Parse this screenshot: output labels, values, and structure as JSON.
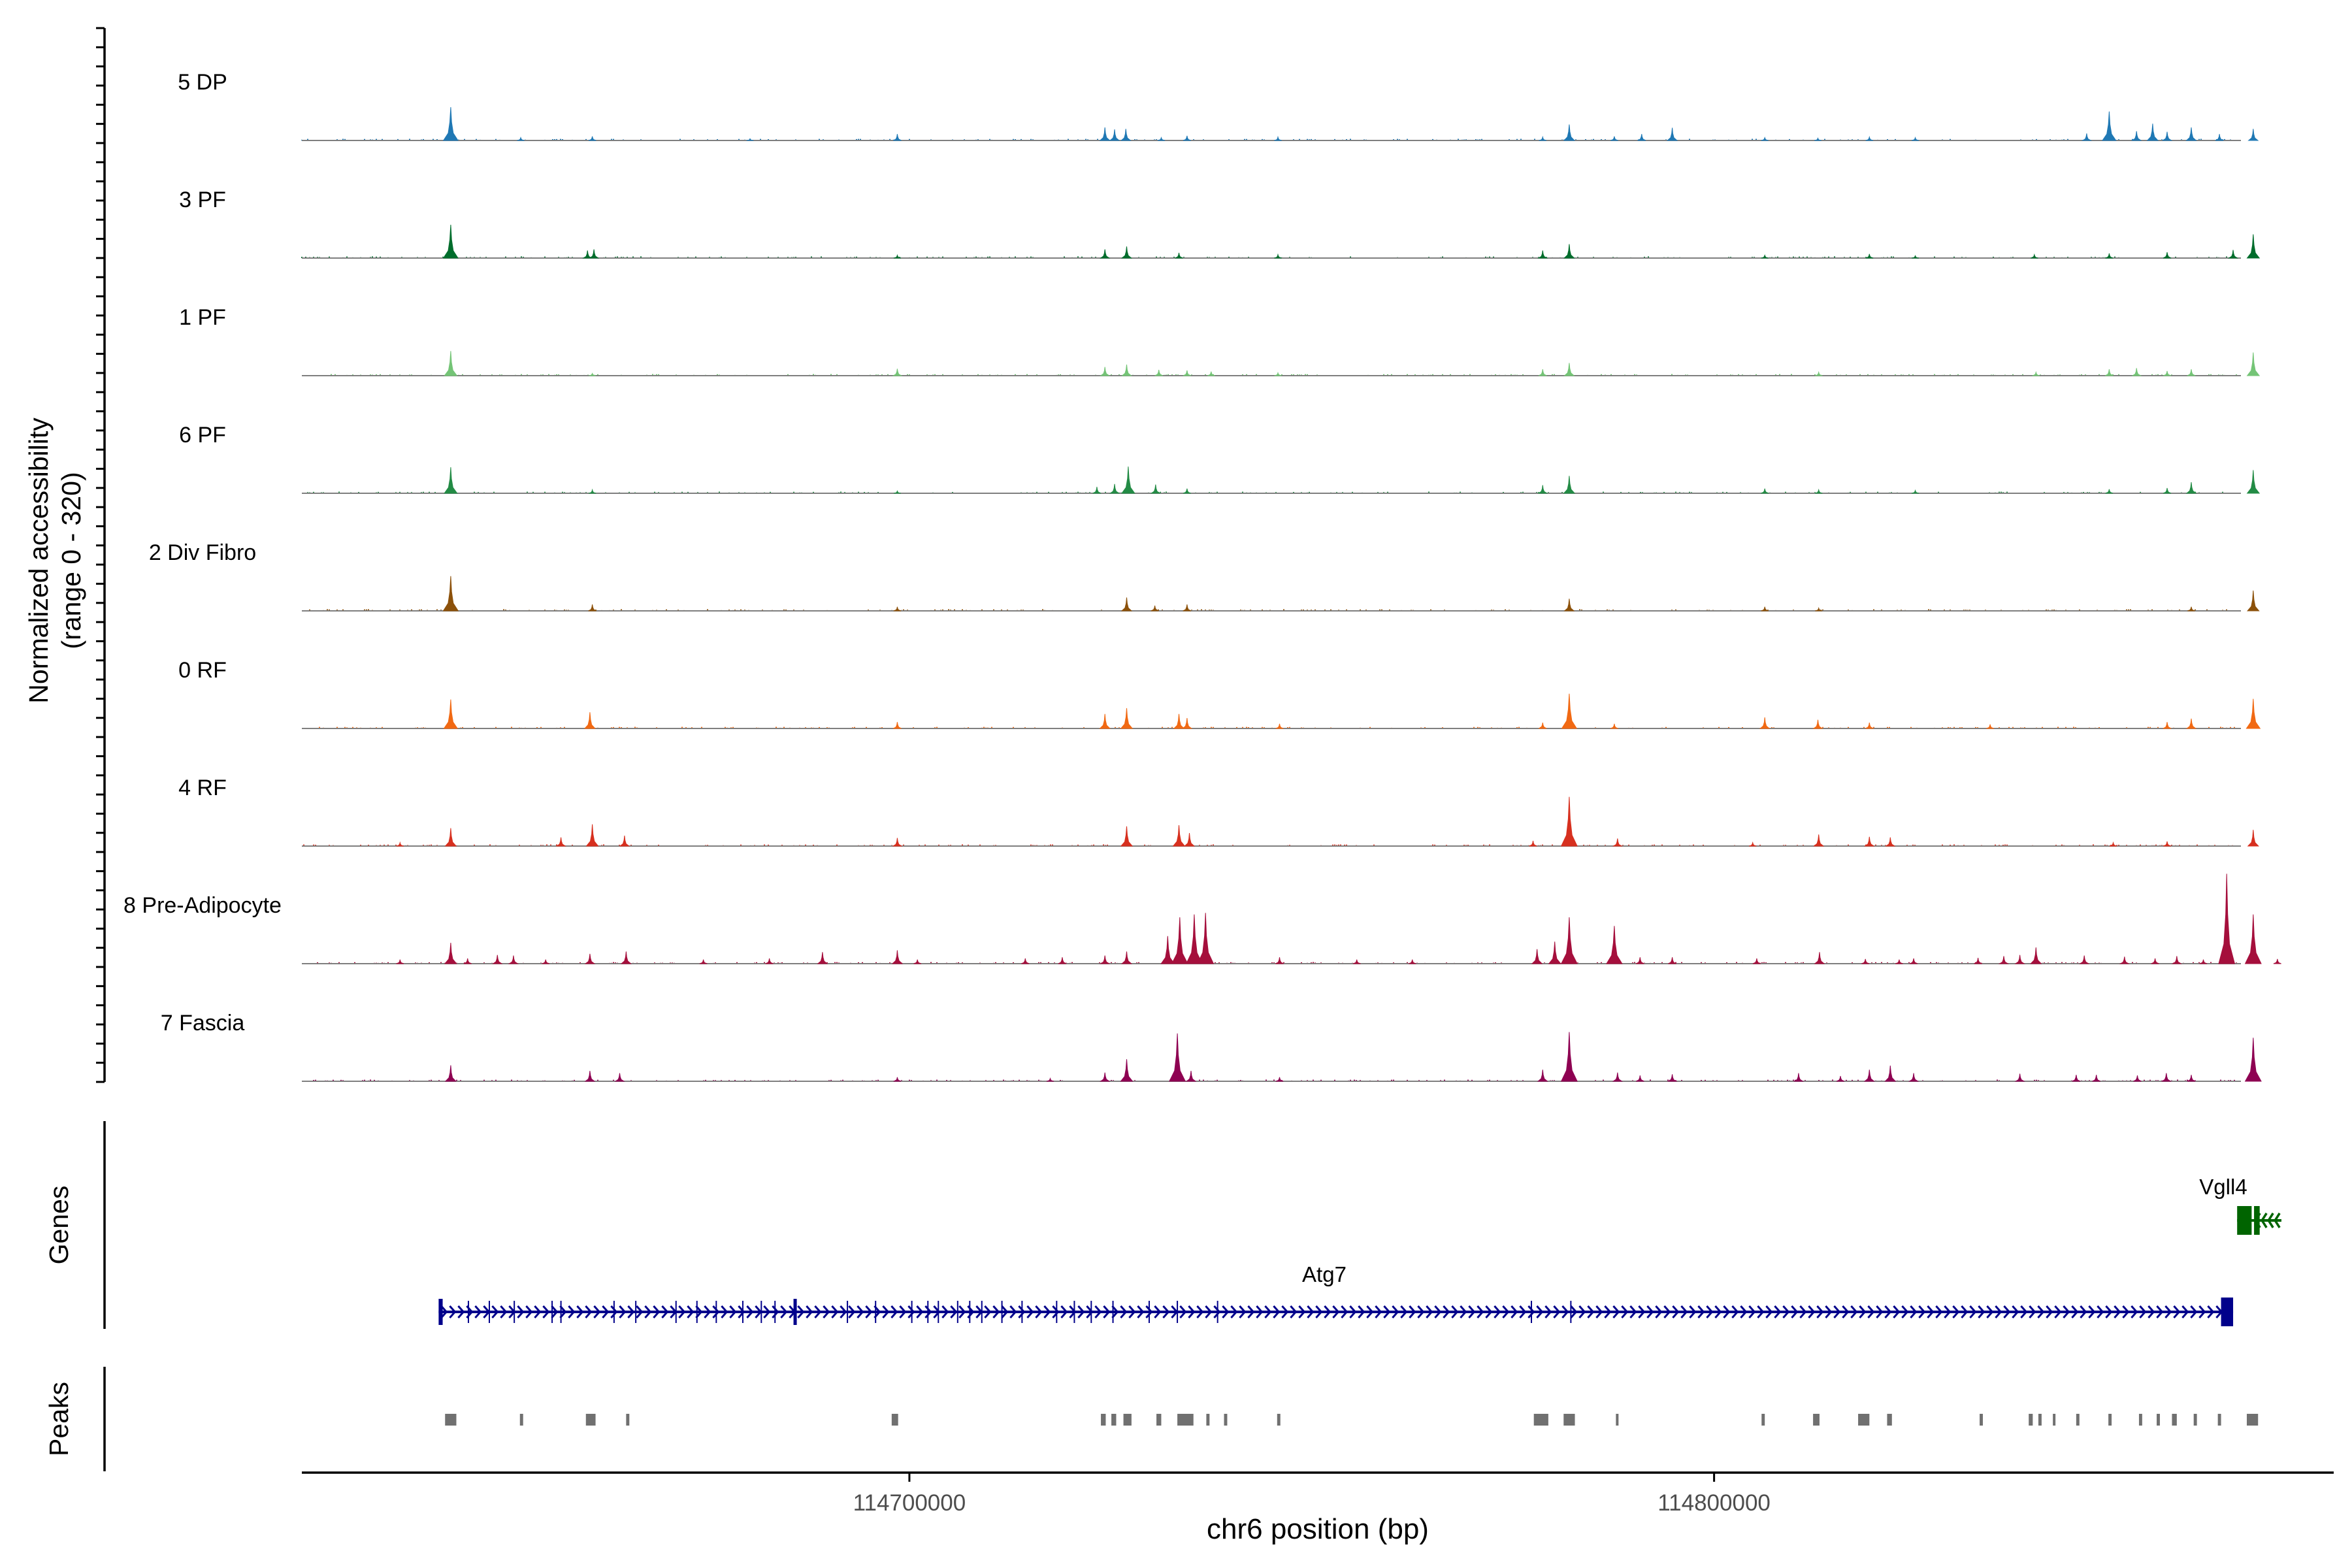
{
  "chart_data": {
    "type": "area",
    "title": "",
    "chromosome": "chr6",
    "xlabel": "chr6 position (bp)",
    "xlim": [
      114624500,
      114877000
    ],
    "x_ticks": [
      114700000,
      114800000
    ],
    "x_tick_labels": [
      "114700000",
      "114800000"
    ],
    "coverage": {
      "ylabel_line1": "Normalized accessibility",
      "ylabel_line2": "(range 0 - 320)",
      "ylim": [
        0,
        320
      ],
      "tracks": [
        {
          "name": "5 DP",
          "color": "#1f78b4",
          "peaks": [
            [
              114643000,
              115
            ],
            [
              114651700,
              10
            ],
            [
              114660600,
              14
            ],
            [
              114680200,
              6
            ],
            [
              114698500,
              22
            ],
            [
              114724300,
              45
            ],
            [
              114725500,
              38
            ],
            [
              114726900,
              40
            ],
            [
              114731300,
              10
            ],
            [
              114734500,
              16
            ],
            [
              114745800,
              12
            ],
            [
              114778700,
              12
            ],
            [
              114782000,
              55
            ],
            [
              114787600,
              14
            ],
            [
              114791000,
              22
            ],
            [
              114794800,
              44
            ],
            [
              114806300,
              10
            ],
            [
              114812900,
              8
            ],
            [
              114819300,
              12
            ],
            [
              114825000,
              10
            ],
            [
              114846300,
              24
            ],
            [
              114849100,
              100
            ],
            [
              114852500,
              32
            ],
            [
              114854500,
              58
            ],
            [
              114856300,
              30
            ],
            [
              114859300,
              45
            ],
            [
              114862800,
              22
            ],
            [
              114867000,
              40
            ]
          ]
        },
        {
          "name": "3 PF",
          "color": "#006d2c",
          "peaks": [
            [
              114643000,
              115
            ],
            [
              114660000,
              26
            ],
            [
              114660800,
              30
            ],
            [
              114698500,
              10
            ],
            [
              114724300,
              30
            ],
            [
              114727000,
              40
            ],
            [
              114733500,
              18
            ],
            [
              114745800,
              12
            ],
            [
              114778700,
              26
            ],
            [
              114782000,
              48
            ],
            [
              114806300,
              10
            ],
            [
              114819300,
              14
            ],
            [
              114825000,
              8
            ],
            [
              114839800,
              12
            ],
            [
              114849100,
              16
            ],
            [
              114856300,
              20
            ],
            [
              114864500,
              28
            ],
            [
              114867000,
              82
            ]
          ]
        },
        {
          "name": "1 PF",
          "color": "#74c476",
          "peaks": [
            [
              114643000,
              85
            ],
            [
              114660600,
              8
            ],
            [
              114698500,
              24
            ],
            [
              114724300,
              30
            ],
            [
              114727000,
              38
            ],
            [
              114731000,
              20
            ],
            [
              114734500,
              18
            ],
            [
              114737500,
              14
            ],
            [
              114745800,
              10
            ],
            [
              114778700,
              22
            ],
            [
              114782000,
              44
            ],
            [
              114813000,
              12
            ],
            [
              114840000,
              12
            ],
            [
              114849100,
              22
            ],
            [
              114852500,
              26
            ],
            [
              114856300,
              16
            ],
            [
              114859300,
              22
            ],
            [
              114867000,
              80
            ]
          ]
        },
        {
          "name": "6 PF",
          "color": "#238b45",
          "peaks": [
            [
              114643000,
              90
            ],
            [
              114660600,
              12
            ],
            [
              114698500,
              8
            ],
            [
              114723300,
              22
            ],
            [
              114725500,
              32
            ],
            [
              114727200,
              92
            ],
            [
              114730600,
              30
            ],
            [
              114734500,
              16
            ],
            [
              114778700,
              28
            ],
            [
              114782000,
              60
            ],
            [
              114806300,
              16
            ],
            [
              114813000,
              12
            ],
            [
              114825000,
              10
            ],
            [
              114849100,
              14
            ],
            [
              114856300,
              18
            ],
            [
              114859300,
              38
            ],
            [
              114867000,
              80
            ]
          ]
        },
        {
          "name": "2 Div Fibro",
          "color": "#8c510a",
          "peaks": [
            [
              114643000,
              120
            ],
            [
              114660600,
              22
            ],
            [
              114698500,
              14
            ],
            [
              114727000,
              46
            ],
            [
              114730500,
              18
            ],
            [
              114734500,
              22
            ],
            [
              114782000,
              42
            ],
            [
              114806300,
              14
            ],
            [
              114813000,
              10
            ],
            [
              114859300,
              14
            ],
            [
              114867000,
              70
            ]
          ]
        },
        {
          "name": "0 RF",
          "color": "#f16913",
          "peaks": [
            [
              114643000,
              100
            ],
            [
              114660300,
              56
            ],
            [
              114698500,
              22
            ],
            [
              114724300,
              50
            ],
            [
              114727000,
              70
            ],
            [
              114733500,
              50
            ],
            [
              114734500,
              36
            ],
            [
              114746000,
              16
            ],
            [
              114778700,
              20
            ],
            [
              114782000,
              120
            ],
            [
              114787600,
              16
            ],
            [
              114806300,
              38
            ],
            [
              114812900,
              30
            ],
            [
              114819300,
              20
            ],
            [
              114834300,
              14
            ],
            [
              114856300,
              22
            ],
            [
              114859300,
              34
            ],
            [
              114867000,
              102
            ]
          ]
        },
        {
          "name": "4 RF",
          "color": "#d7301f",
          "peaks": [
            [
              114636700,
              12
            ],
            [
              114643000,
              62
            ],
            [
              114656700,
              30
            ],
            [
              114660600,
              75
            ],
            [
              114664600,
              36
            ],
            [
              114698500,
              28
            ],
            [
              114727000,
              68
            ],
            [
              114733500,
              72
            ],
            [
              114734800,
              45
            ],
            [
              114777500,
              18
            ],
            [
              114782000,
              170
            ],
            [
              114788000,
              26
            ],
            [
              114804800,
              12
            ],
            [
              114813000,
              40
            ],
            [
              114819300,
              32
            ],
            [
              114821900,
              30
            ],
            [
              114849600,
              12
            ],
            [
              114856300,
              16
            ],
            [
              114867000,
              56
            ]
          ]
        },
        {
          "name": "8 Pre-Adipocyte",
          "color": "#a50f3c",
          "peaks": [
            [
              114636700,
              14
            ],
            [
              114643000,
              72
            ],
            [
              114645100,
              18
            ],
            [
              114648800,
              30
            ],
            [
              114650800,
              28
            ],
            [
              114654800,
              14
            ],
            [
              114660300,
              34
            ],
            [
              114664800,
              42
            ],
            [
              114674400,
              14
            ],
            [
              114682600,
              18
            ],
            [
              114689200,
              40
            ],
            [
              114698500,
              46
            ],
            [
              114701000,
              14
            ],
            [
              114714400,
              18
            ],
            [
              114719000,
              22
            ],
            [
              114724300,
              28
            ],
            [
              114727000,
              42
            ],
            [
              114732100,
              95
            ],
            [
              114733600,
              160
            ],
            [
              114735400,
              170
            ],
            [
              114736800,
              175
            ],
            [
              114746000,
              22
            ],
            [
              114755600,
              14
            ],
            [
              114762500,
              14
            ],
            [
              114778000,
              50
            ],
            [
              114780200,
              76
            ],
            [
              114782000,
              160
            ],
            [
              114787600,
              130
            ],
            [
              114790800,
              22
            ],
            [
              114794800,
              22
            ],
            [
              114805300,
              18
            ],
            [
              114813100,
              40
            ],
            [
              114818800,
              16
            ],
            [
              114823000,
              14
            ],
            [
              114824800,
              18
            ],
            [
              114832800,
              20
            ],
            [
              114836000,
              26
            ],
            [
              114838000,
              30
            ],
            [
              114840000,
              56
            ],
            [
              114846000,
              28
            ],
            [
              114851000,
              24
            ],
            [
              114854800,
              18
            ],
            [
              114857500,
              26
            ],
            [
              114860800,
              14
            ],
            [
              114863700,
              310
            ],
            [
              114867000,
              170
            ],
            [
              114870000,
              16
            ]
          ]
        },
        {
          "name": "7 Fascia",
          "color": "#8e0152",
          "peaks": [
            [
              114643000,
              55
            ],
            [
              114660300,
              36
            ],
            [
              114664000,
              28
            ],
            [
              114698500,
              14
            ],
            [
              114717500,
              10
            ],
            [
              114724300,
              30
            ],
            [
              114727000,
              76
            ],
            [
              114733300,
              165
            ],
            [
              114735000,
              36
            ],
            [
              114746000,
              14
            ],
            [
              114778700,
              40
            ],
            [
              114782000,
              170
            ],
            [
              114788000,
              30
            ],
            [
              114790800,
              20
            ],
            [
              114794800,
              24
            ],
            [
              114810500,
              28
            ],
            [
              114815700,
              18
            ],
            [
              114819300,
              40
            ],
            [
              114821900,
              54
            ],
            [
              114824800,
              28
            ],
            [
              114838000,
              26
            ],
            [
              114845000,
              22
            ],
            [
              114847500,
              22
            ],
            [
              114852600,
              20
            ],
            [
              114856200,
              28
            ],
            [
              114859300,
              22
            ],
            [
              114867000,
              150
            ]
          ]
        }
      ]
    },
    "genes": {
      "label": "Genes",
      "items": [
        {
          "name": "Atg7",
          "start": 114641500,
          "end": 114864500,
          "strand": "+",
          "color": "#00008b",
          "exons": [
            [
              114641500,
              114642000
            ],
            [
              114685600,
              114686000
            ],
            [
              114863000,
              114864500
            ]
          ]
        },
        {
          "name": "Vgll4",
          "start": 114865000,
          "end": 114870500,
          "strand": "-",
          "color": "#006400",
          "exons": [
            [
              114865000,
              114866800
            ],
            [
              114867100,
              114867800
            ]
          ]
        }
      ]
    },
    "peaks": {
      "label": "Peaks",
      "color": "#707070",
      "regions": [
        [
          114642300,
          114643700
        ],
        [
          114651600,
          114652000
        ],
        [
          114659800,
          114661000
        ],
        [
          114664800,
          114665200
        ],
        [
          114697800,
          114698600
        ],
        [
          114723800,
          114724400
        ],
        [
          114725100,
          114725700
        ],
        [
          114726600,
          114727600
        ],
        [
          114730700,
          114731300
        ],
        [
          114733300,
          114735300
        ],
        [
          114736900,
          114737300
        ],
        [
          114739100,
          114739500
        ],
        [
          114745700,
          114746100
        ],
        [
          114777600,
          114779400
        ],
        [
          114781300,
          114782700
        ],
        [
          114787800,
          114788000
        ],
        [
          114805900,
          114806300
        ],
        [
          114812300,
          114813100
        ],
        [
          114817900,
          114819300
        ],
        [
          114821500,
          114822100
        ],
        [
          114833000,
          114833400
        ],
        [
          114839100,
          114839600
        ],
        [
          114840300,
          114840700
        ],
        [
          114842100,
          114842400
        ],
        [
          114845000,
          114845400
        ],
        [
          114849000,
          114849400
        ],
        [
          114852800,
          114853200
        ],
        [
          114855000,
          114855400
        ],
        [
          114856900,
          114857500
        ],
        [
          114859600,
          114860000
        ],
        [
          114862600,
          114863000
        ],
        [
          114866200,
          114867600
        ]
      ]
    }
  }
}
